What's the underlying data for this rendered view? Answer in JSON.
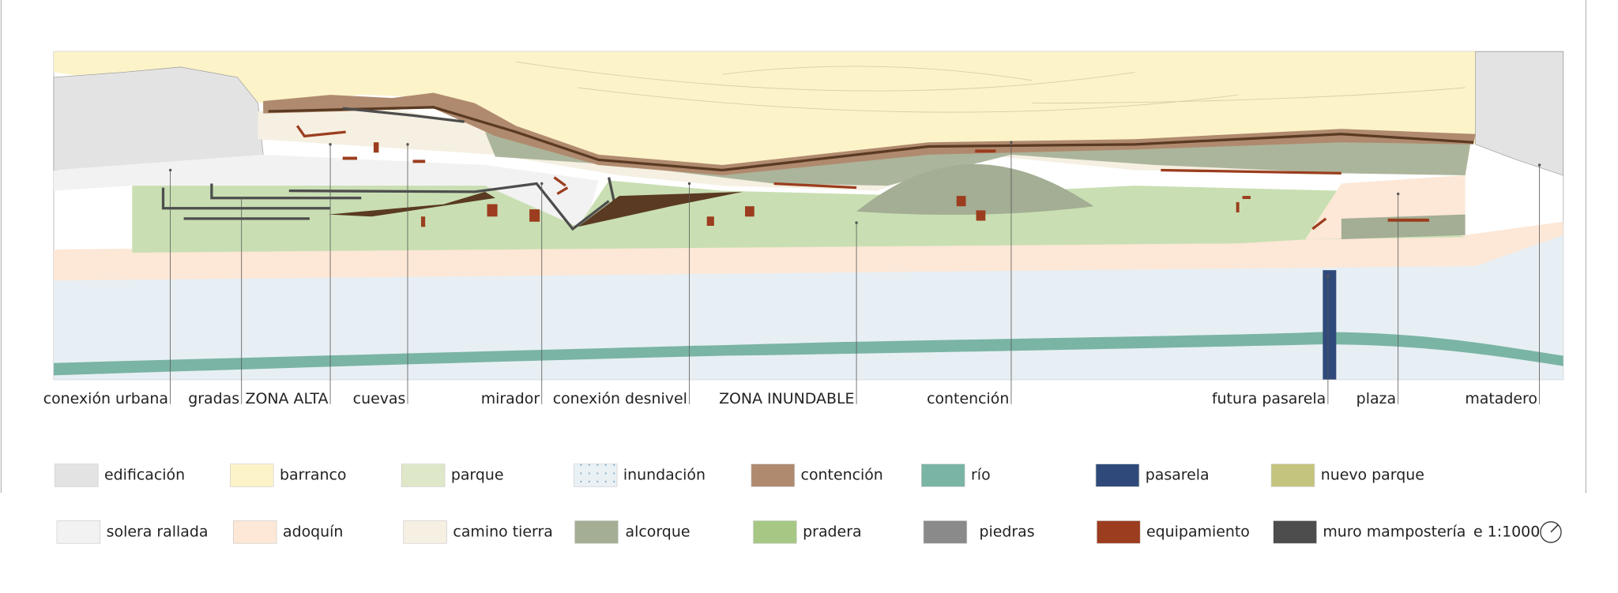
{
  "map": {
    "labels": [
      "conexión urbana",
      "gradas",
      "ZONA ALTA",
      "cuevas",
      "mirador",
      "conexión desnivel",
      "ZONA INUNDABLE",
      "contención",
      "futura pasarela",
      "plaza",
      "matadero"
    ],
    "legend": [
      {
        "label": "edificación",
        "color": "#e3e3e3"
      },
      {
        "label": "barranco",
        "color": "#fdf3c9"
      },
      {
        "label": "parque",
        "color": "#dfe7c9"
      },
      {
        "label": "inundación",
        "color": "#eaf1f4"
      },
      {
        "label": "contención",
        "color": "#b08a6e"
      },
      {
        "label": "río",
        "color": "#7ab4a4"
      },
      {
        "label": "pasarela",
        "color": "#2f4a7a"
      },
      {
        "label": "nuevo parque",
        "color": "#c4c47e"
      },
      {
        "label": "solera rallada",
        "color": "#f2f2f2"
      },
      {
        "label": "adoquín",
        "color": "#fde7d6"
      },
      {
        "label": "camino tierra",
        "color": "#f5f0e2"
      },
      {
        "label": "alcorque",
        "color": "#a3ae94"
      },
      {
        "label": "pradera",
        "color": "#a6c884"
      },
      {
        "label": "piedras",
        "color": "#8a8a8a"
      },
      {
        "label": "equipamiento",
        "color": "#9b3d1e"
      },
      {
        "label": "muro mampostería",
        "color": "#4d4d4d"
      }
    ],
    "scale": "e 1:1000"
  }
}
